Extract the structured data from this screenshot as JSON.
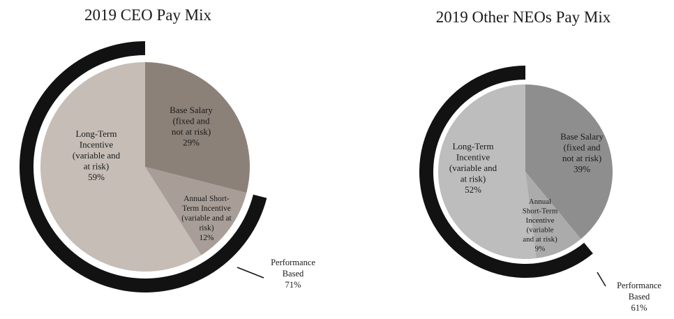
{
  "chart_data": [
    {
      "type": "pie",
      "title": "2019 CEO Pay Mix",
      "slices": [
        {
          "label": "Base Salary (fixed and not at risk)",
          "lines": [
            "Base Salary",
            "(fixed and",
            "not at risk)",
            "29%"
          ],
          "value": 29,
          "color": "#8c8179"
        },
        {
          "label": "Annual Short-Term Incentive (variable and at risk)",
          "lines": [
            "Annual Short-",
            "Term Incentive",
            "(variable and at",
            "risk)",
            "12%"
          ],
          "value": 12,
          "color": "#a89e97"
        },
        {
          "label": "Long-Term Incentive (variable and at risk)",
          "lines": [
            "Long-Term",
            "Incentive",
            "(variable and",
            "at risk)",
            "59%"
          ],
          "value": 59,
          "color": "#c5bdb6"
        }
      ],
      "outer_ring": {
        "lines": [
          "Performance",
          "Based",
          "71%"
        ],
        "value": 71,
        "color": "#121212"
      }
    },
    {
      "type": "pie",
      "title": "2019 Other NEOs Pay Mix",
      "slices": [
        {
          "label": "Base Salary (fixed and not at risk)",
          "lines": [
            "Base Salary",
            "(fixed and",
            "not at risk)",
            "39%"
          ],
          "value": 39,
          "color": "#8e8e8e"
        },
        {
          "label": "Annual Short-Term Incentive (variable and at risk)",
          "lines": [
            "Annual",
            "Short-Term",
            "Incentive",
            "(variable",
            "and at risk)",
            "9%"
          ],
          "value": 9,
          "color": "#ababab"
        },
        {
          "label": "Long-Term Incentive (variable and at risk)",
          "lines": [
            "Long-Term",
            "Incentive",
            "(variable and",
            "at risk)",
            "52%"
          ],
          "value": 52,
          "color": "#bdbdbd"
        }
      ],
      "outer_ring": {
        "lines": [
          "Performance",
          "Based",
          "61%"
        ],
        "value": 61,
        "color": "#121212"
      }
    }
  ]
}
